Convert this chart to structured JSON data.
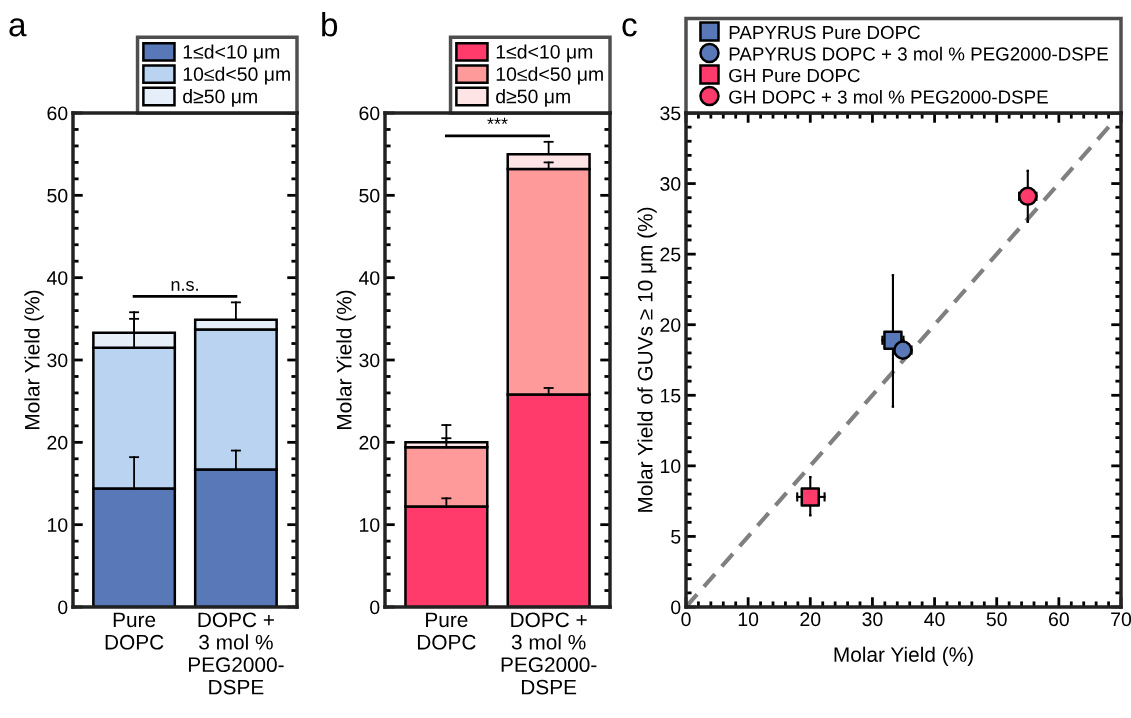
{
  "chart_data": [
    {
      "type": "bar",
      "title": "a",
      "stacked": true,
      "categories": [
        "Pure\nDOPC",
        "DOPC +\n3 mol %\nPEG2000-\nDSPE"
      ],
      "ylabel": "Molar Yield (%)",
      "ylim": [
        0,
        60
      ],
      "yticks": [
        0,
        10,
        20,
        30,
        40,
        50,
        60
      ],
      "grid": false,
      "legend": "top right",
      "series": [
        {
          "name": "1≤d<10 μm",
          "color": "#5878b8",
          "values": [
            14.4,
            16.7
          ],
          "errors": [
            [
              14.4,
              18.2
            ],
            [
              16.7,
              19.0
            ]
          ]
        },
        {
          "name": "10≤d<50 μm",
          "color": "#b9d3f0",
          "values": [
            17.1,
            17.0
          ],
          "errors": [
            [
              31.5,
              35.0
            ],
            null
          ]
        },
        {
          "name": "d≥50 μm",
          "color": "#e6eefa",
          "values": [
            1.8,
            1.2
          ],
          "errors": [
            [
              33.3,
              35.8
            ],
            [
              34.9,
              37.0
            ]
          ]
        }
      ],
      "annotations": [
        "n.s."
      ]
    },
    {
      "type": "bar",
      "title": "b",
      "stacked": true,
      "categories": [
        "Pure\nDOPC",
        "DOPC +\n3 mol %\nPEG2000-\nDSPE"
      ],
      "ylabel": "Molar Yield (%)",
      "ylim": [
        0,
        60
      ],
      "yticks": [
        0,
        10,
        20,
        30,
        40,
        50,
        60
      ],
      "grid": false,
      "legend": "top right",
      "series": [
        {
          "name": "1≤d<10 μm",
          "color": "#fe3b6a",
          "values": [
            12.2,
            25.8
          ],
          "errors": [
            [
              12.2,
              13.2
            ],
            [
              25.8,
              26.6
            ]
          ]
        },
        {
          "name": "10≤d<50 μm",
          "color": "#fe9a9a",
          "values": [
            7.2,
            27.4
          ],
          "errors": [
            [
              19.4,
              20.5
            ],
            [
              53.2,
              54.0
            ]
          ]
        },
        {
          "name": "d≥50 μm",
          "color": "#fee4e4",
          "values": [
            0.6,
            1.8
          ],
          "errors": [
            [
              20.0,
              22.1
            ],
            [
              55.0,
              56.5
            ]
          ]
        }
      ],
      "annotations": [
        "***"
      ]
    },
    {
      "type": "scatter",
      "title": "c",
      "xlabel": "Molar Yield (%)",
      "ylabel": "Molar Yield of GUVs ≥ 10 μm (%)",
      "xlim": [
        0,
        70
      ],
      "xticks": [
        0,
        10,
        20,
        30,
        40,
        50,
        60,
        70
      ],
      "ylim": [
        0,
        35
      ],
      "yticks": [
        0,
        5,
        10,
        15,
        20,
        25,
        30,
        35
      ],
      "grid": false,
      "legend": "top",
      "series": [
        {
          "name": "PAPYRUS Pure DOPC",
          "color": "#5878b8",
          "marker": "square",
          "x": [
            33.3
          ],
          "values": [
            18.9
          ],
          "errors": [
            [
              14.2,
              23.5
            ]
          ],
          "xerrors": [
            [
              31.6,
              35.0
            ]
          ]
        },
        {
          "name": "PAPYRUS DOPC + 3 mol % PEG2000-DSPE",
          "color": "#5878b8",
          "marker": "circle",
          "x": [
            34.9
          ],
          "values": [
            18.2
          ],
          "xerrors": [
            [
              33.5,
              36.3
            ]
          ]
        },
        {
          "name": "GH Pure DOPC",
          "color": "#fe3b6a",
          "marker": "square",
          "x": [
            20.0
          ],
          "values": [
            7.8
          ],
          "errors": [
            [
              6.5,
              9.2
            ]
          ],
          "xerrors": [
            [
              17.9,
              22.3
            ]
          ]
        },
        {
          "name": "GH DOPC + 3 mol % PEG2000-DSPE",
          "color": "#fe3b6a",
          "marker": "circle",
          "x": [
            55.0
          ],
          "values": [
            29.1
          ],
          "errors": [
            [
              27.3,
              30.9
            ]
          ],
          "xerrors": [
            [
              53.6,
              56.4
            ]
          ]
        },
        {
          "type": "line",
          "color": "#808080",
          "line_style": "dashed",
          "x": [
            0,
            68.4
          ],
          "values": [
            0,
            34.2
          ]
        }
      ]
    }
  ]
}
